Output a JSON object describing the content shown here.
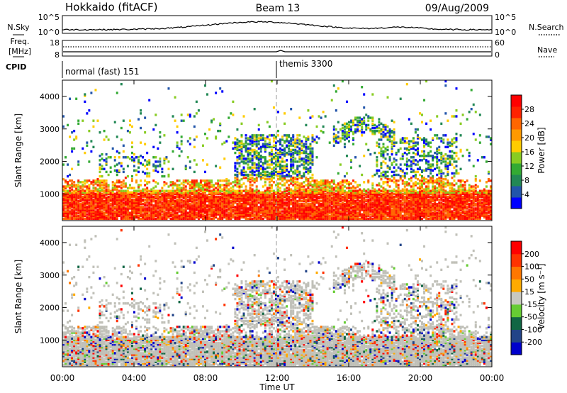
{
  "header": {
    "radar_title": "Hokkaido (fitACF)",
    "beam_label": "Beam 13",
    "date_label": "09/Aug/2009"
  },
  "nsky_panel": {
    "left_label": "N.Sky",
    "right_label": "N.Search",
    "left_ticks": [
      "10^5",
      "10^0"
    ],
    "right_ticks": [
      "10^5",
      "10^0"
    ]
  },
  "freq_panel": {
    "left_label_line1": "Freq.",
    "left_label_line2": "[MHz]",
    "right_label": "Nave",
    "left_ticks": [
      "18",
      "8"
    ],
    "right_ticks": [
      "60",
      "0"
    ]
  },
  "cpid_panel": {
    "label": "CPID",
    "program_1": "normal (fast) 151",
    "program_2": "themis 3300"
  },
  "colors": {
    "power_scale": [
      "#0000ff",
      "#2255aa",
      "#228855",
      "#33aa33",
      "#88cc22",
      "#ffcc00",
      "#ff9900",
      "#ff6600",
      "#ff2200",
      "#ff0000"
    ],
    "velocity_scale": [
      "#0000cc",
      "#224488",
      "#116644",
      "#66cc33",
      "#c8c8c0",
      "#ffaa00",
      "#ff7700",
      "#ff3300",
      "#ff0000"
    ],
    "ground_scatter": "#c0c0b8"
  },
  "chart_data": [
    {
      "type": "heatmap",
      "name": "power",
      "ylabel": "Slant Range [km]",
      "colorbar_label": "Power [dB]",
      "colorbar_ticks": [
        "28",
        "24",
        "20",
        "16",
        "12",
        "8",
        "4"
      ],
      "ylim": [
        180,
        4500
      ],
      "yticks": [
        "4000",
        "3000",
        "2000",
        "1000"
      ],
      "xlim": [
        0,
        24
      ]
    },
    {
      "type": "heatmap",
      "name": "velocity",
      "ylabel": "Slant Range [km]",
      "colorbar_label": "Velocity [m s⁻¹]",
      "colorbar_ticks": [
        "200",
        "100",
        "50",
        "15",
        "-15",
        "-50",
        "-100",
        "-200"
      ],
      "ylim": [
        180,
        4500
      ],
      "yticks": [
        "4000",
        "3000",
        "2000",
        "1000"
      ],
      "xlim": [
        0,
        24
      ],
      "xticks": [
        "00:00",
        "04:00",
        "08:00",
        "12:00",
        "16:00",
        "20:00",
        "00:00"
      ],
      "xlabel": "Time UT"
    }
  ]
}
